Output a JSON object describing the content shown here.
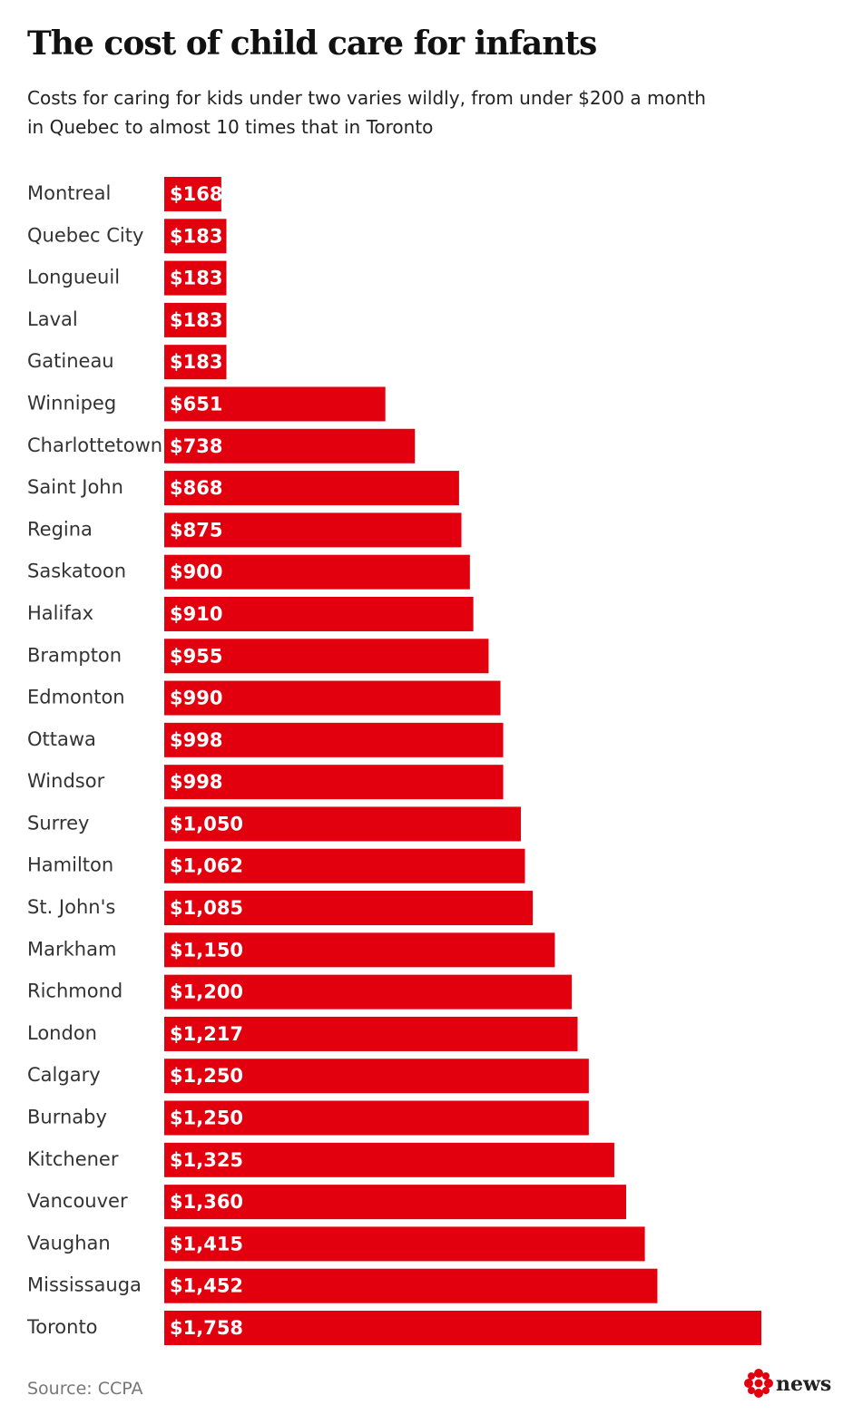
{
  "chart_data": {
    "type": "bar",
    "orientation": "horizontal",
    "title": "The cost of child care for infants",
    "subtitle": [
      "Costs for caring for kids under two varies wildly, from under $200 a month",
      "in Quebec to almost 10 times that in Toronto"
    ],
    "categories": [
      "Montreal",
      "Quebec City",
      "Longueuil",
      "Laval",
      "Gatineau",
      "Winnipeg",
      "Charlottetown",
      "Saint John",
      "Regina",
      "Saskatoon",
      "Halifax",
      "Brampton",
      "Edmonton",
      "Ottawa",
      "Windsor",
      "Surrey",
      "Hamilton",
      "St. John's",
      "Markham",
      "Richmond",
      "London",
      "Calgary",
      "Burnaby",
      "Kitchener",
      "Vancouver",
      "Vaughan",
      "Mississauga",
      "Toronto"
    ],
    "values": [
      168,
      183,
      183,
      183,
      183,
      651,
      738,
      868,
      875,
      900,
      910,
      955,
      990,
      998,
      998,
      1050,
      1062,
      1085,
      1150,
      1200,
      1217,
      1250,
      1250,
      1325,
      1360,
      1415,
      1452,
      1758
    ],
    "value_labels": [
      "$168",
      "$183",
      "$183",
      "$183",
      "$183",
      "$651",
      "$738",
      "$868",
      "$875",
      "$900",
      "$910",
      "$955",
      "$990",
      "$998",
      "$998",
      "$1,050",
      "$1,062",
      "$1,085",
      "$1,150",
      "$1,200",
      "$1,217",
      "$1,250",
      "$1,250",
      "$1,325",
      "$1,360",
      "$1,415",
      "$1,452",
      "$1,758"
    ],
    "color": "#e2000f",
    "source": "Source: CCPA",
    "logo": "news"
  }
}
